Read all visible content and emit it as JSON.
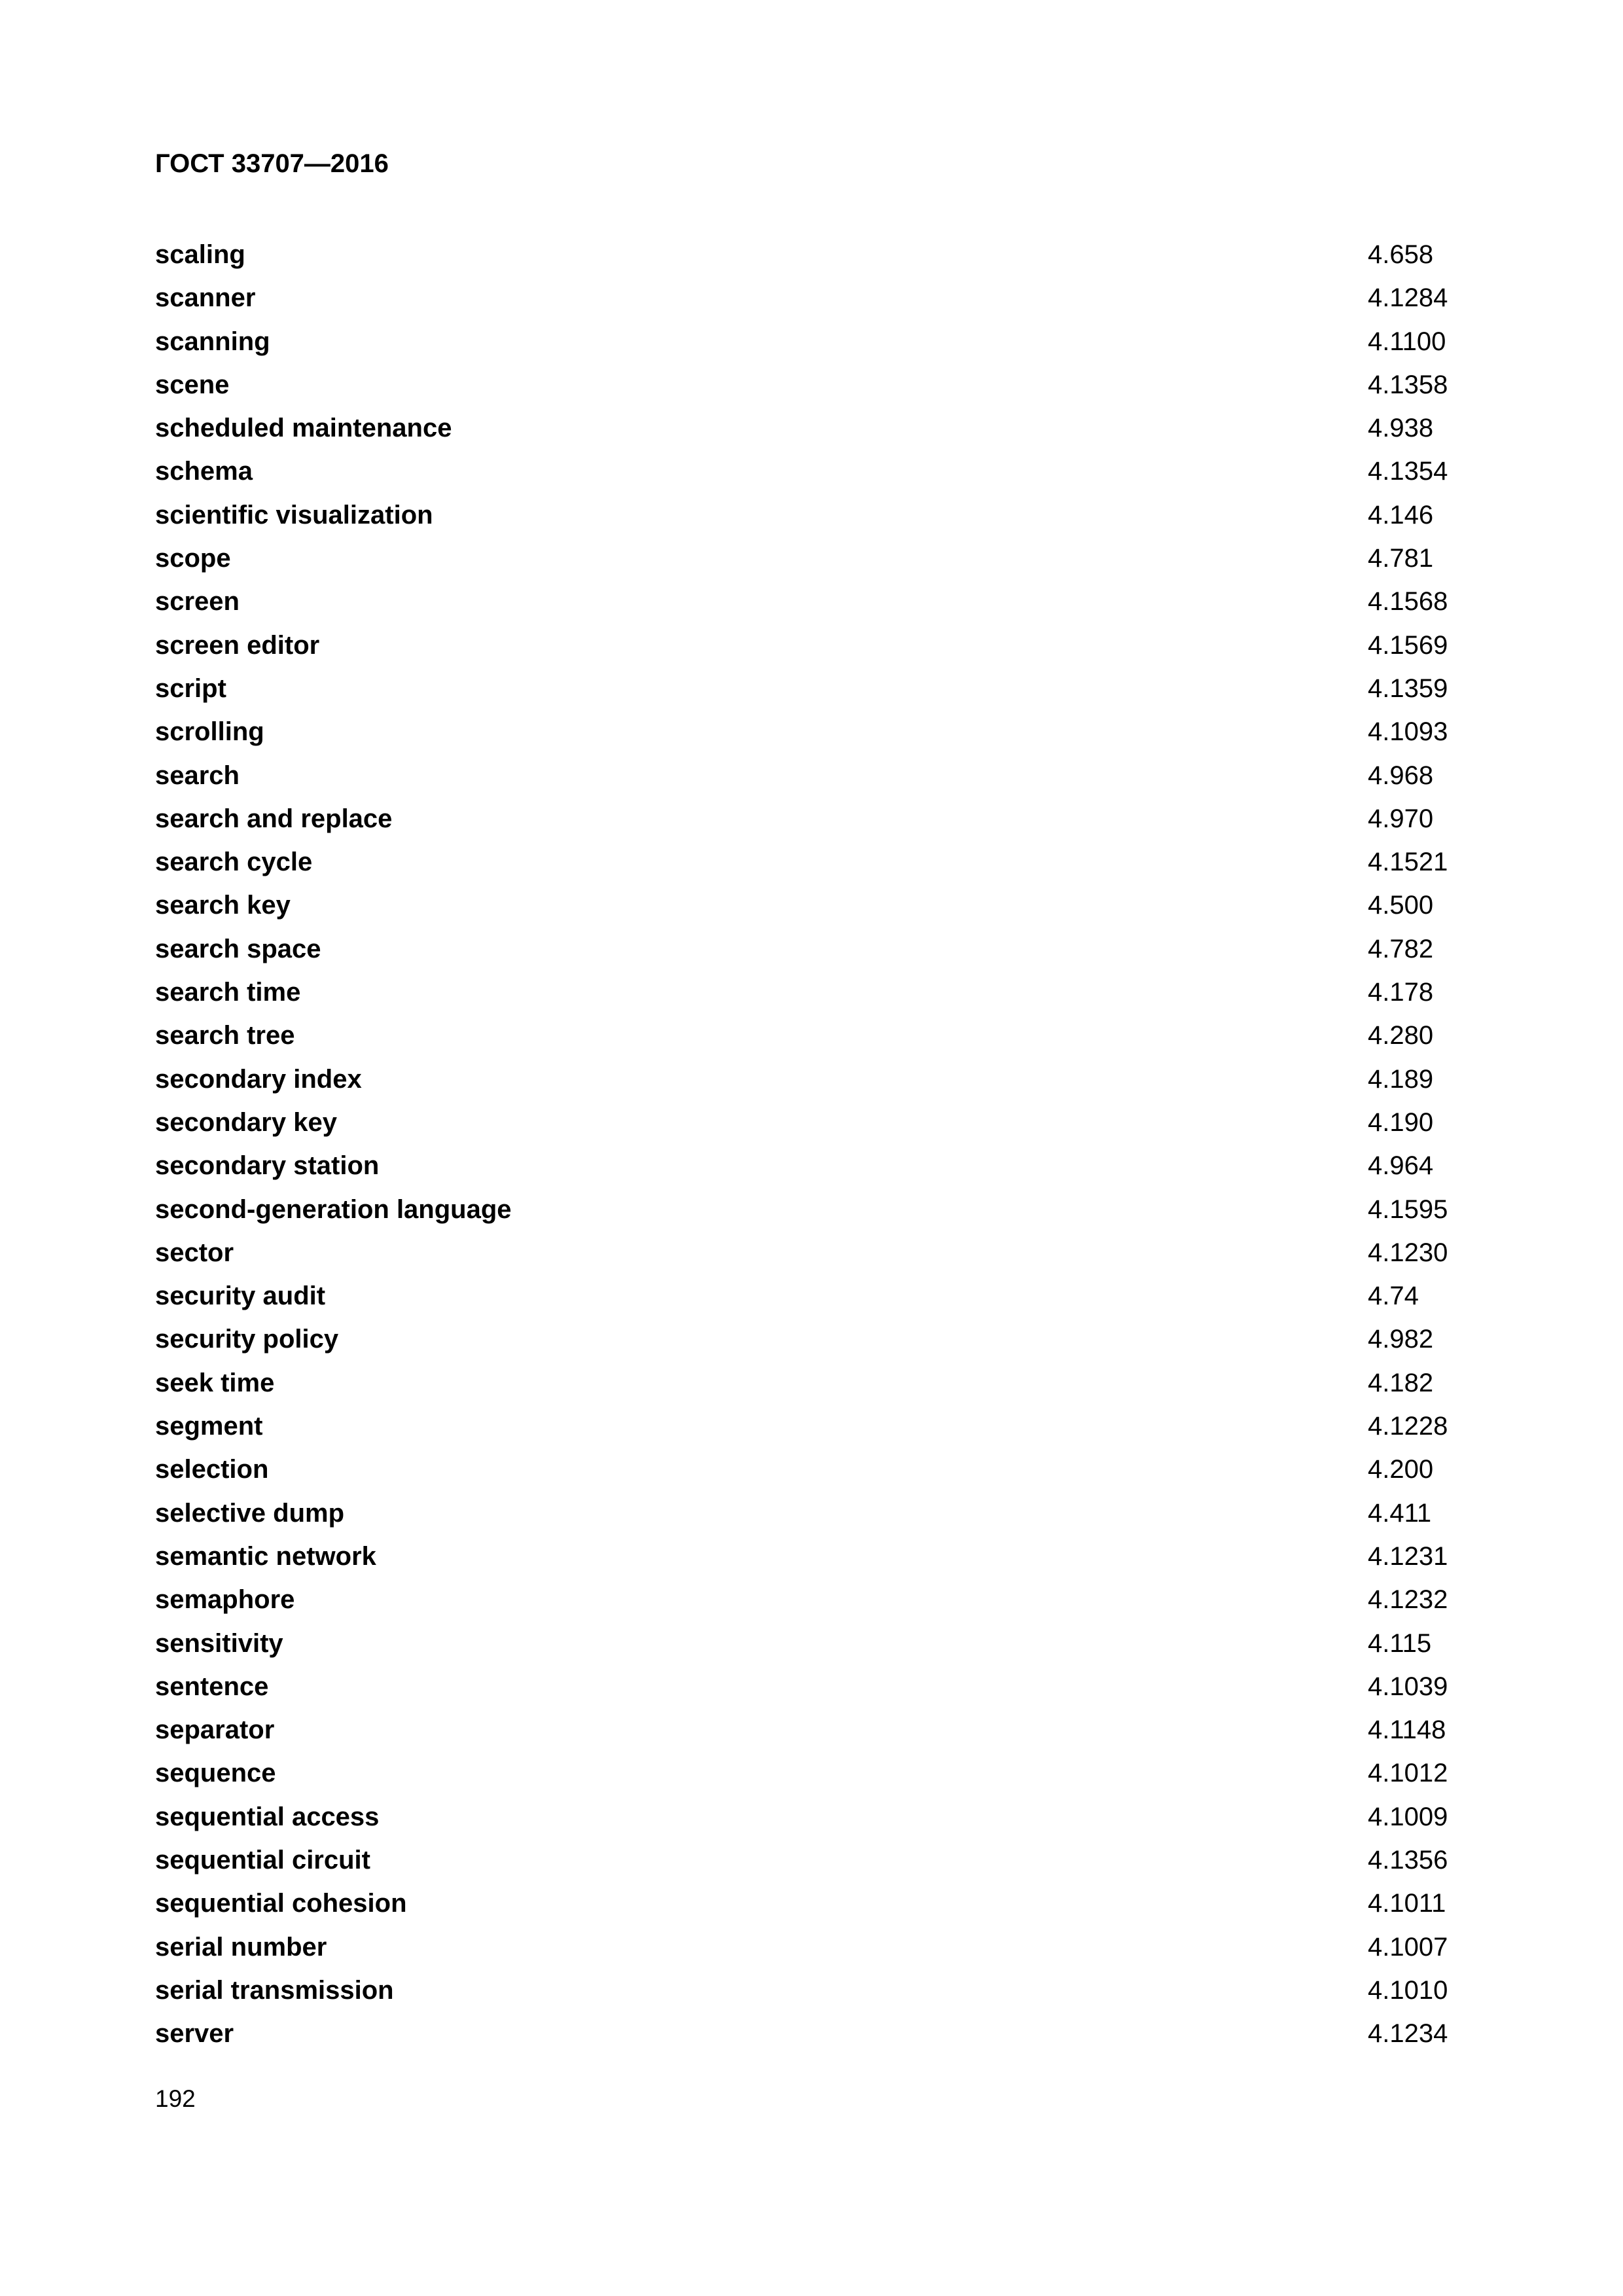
{
  "header": {
    "title": "ГОСТ 33707—2016"
  },
  "entries": [
    {
      "term": "scaling",
      "ref": "4.658"
    },
    {
      "term": "scanner",
      "ref": "4.1284"
    },
    {
      "term": "scanning",
      "ref": "4.1100"
    },
    {
      "term": "scene",
      "ref": "4.1358"
    },
    {
      "term": "scheduled maintenance",
      "ref": "4.938"
    },
    {
      "term": "schema",
      "ref": "4.1354"
    },
    {
      "term": "scientific visualization",
      "ref": "4.146"
    },
    {
      "term": "scope",
      "ref": "4.781"
    },
    {
      "term": "screen",
      "ref": "4.1568"
    },
    {
      "term": "screen editor",
      "ref": "4.1569"
    },
    {
      "term": "script",
      "ref": "4.1359"
    },
    {
      "term": "scrolling",
      "ref": "4.1093"
    },
    {
      "term": "search",
      "ref": "4.968"
    },
    {
      "term": "search and replace",
      "ref": "4.970"
    },
    {
      "term": "search cycle",
      "ref": "4.1521"
    },
    {
      "term": "search key",
      "ref": "4.500"
    },
    {
      "term": "search space",
      "ref": "4.782"
    },
    {
      "term": "search time",
      "ref": "4.178"
    },
    {
      "term": "search tree",
      "ref": "4.280"
    },
    {
      "term": "secondary index",
      "ref": "4.189"
    },
    {
      "term": "secondary key",
      "ref": "4.190"
    },
    {
      "term": "secondary station",
      "ref": "4.964"
    },
    {
      "term": "second-generation language",
      "ref": "4.1595"
    },
    {
      "term": "sector",
      "ref": "4.1230"
    },
    {
      "term": "security audit",
      "ref": "4.74"
    },
    {
      "term": "security policy",
      "ref": "4.982"
    },
    {
      "term": "seek time",
      "ref": "4.182"
    },
    {
      "term": "segment",
      "ref": "4.1228"
    },
    {
      "term": "selection",
      "ref": "4.200"
    },
    {
      "term": "selective dump",
      "ref": "4.411"
    },
    {
      "term": "semantic network",
      "ref": "4.1231"
    },
    {
      "term": "semaphore",
      "ref": "4.1232"
    },
    {
      "term": "sensitivity",
      "ref": "4.115"
    },
    {
      "term": "sentence",
      "ref": "4.1039"
    },
    {
      "term": "separator",
      "ref": "4.1148"
    },
    {
      "term": "sequence",
      "ref": "4.1012"
    },
    {
      "term": "sequential access",
      "ref": "4.1009"
    },
    {
      "term": "sequential circuit",
      "ref": "4.1356"
    },
    {
      "term": "sequential cohesion",
      "ref": "4.1011"
    },
    {
      "term": "serial number",
      "ref": "4.1007"
    },
    {
      "term": "serial transmission",
      "ref": "4.1010"
    },
    {
      "term": "server",
      "ref": "4.1234"
    }
  ],
  "footer": {
    "page_number": "192"
  }
}
